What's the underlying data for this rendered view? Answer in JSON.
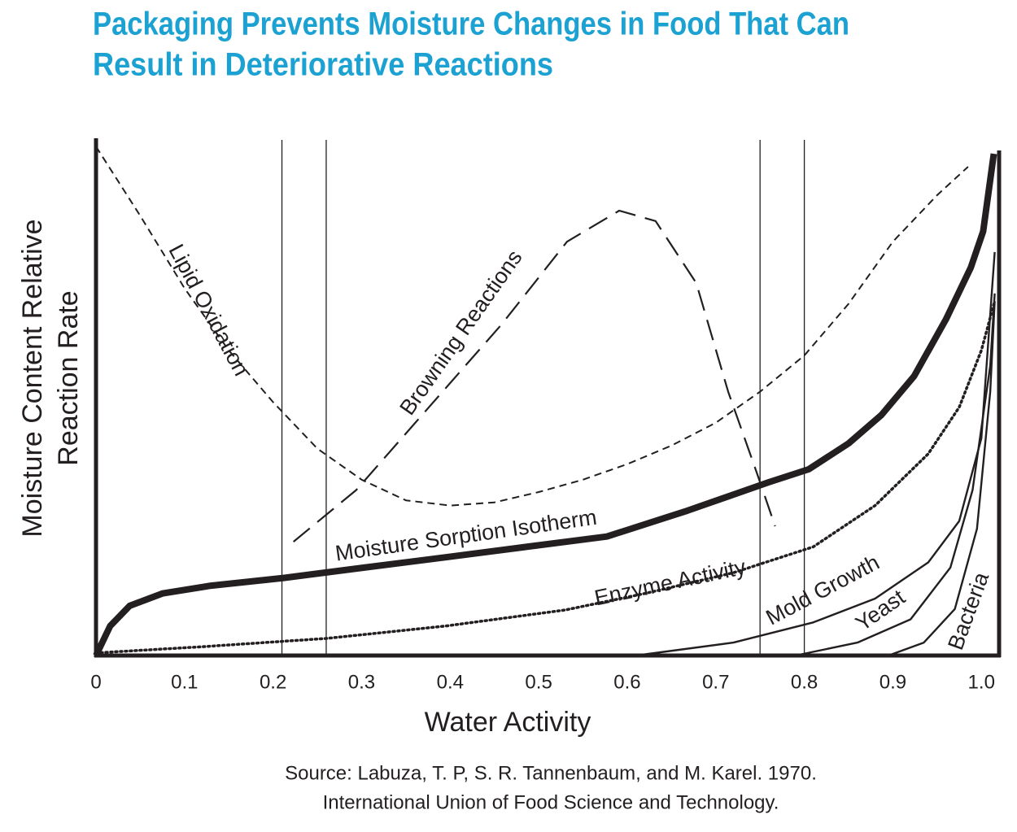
{
  "chart_data": {
    "type": "line",
    "title": [
      "Packaging Prevents Moisture Changes in Food That Can",
      "Result in Deteriorative Reactions"
    ],
    "x_label": "Water Activity",
    "y_label": [
      "Moisture Content Relative",
      "Reaction Rate"
    ],
    "source": [
      "Source: Labuza, T. P, S. R. Tannenbaum, and M. Karel. 1970.",
      "International Union of Food Science and Technology."
    ],
    "xlim": [
      0,
      1.02
    ],
    "xticks": [
      0,
      0.1,
      0.2,
      0.3,
      0.4,
      0.5,
      0.6,
      0.7,
      0.8,
      0.9,
      {
        "value": 1,
        "label": "1.0"
      }
    ],
    "ylim": [
      0,
      100
    ],
    "vlines": [
      0.21,
      0.26,
      0.75,
      0.8
    ],
    "series": [
      {
        "name": "Lipid Oxidation",
        "color": "#231f20",
        "line_style": "dashed",
        "x": [
          0,
          0.05,
          0.1,
          0.15,
          0.2,
          0.25,
          0.3,
          0.35,
          0.4,
          0.45,
          0.5,
          0.55,
          0.6,
          0.65,
          0.7,
          0.75,
          0.8,
          0.85,
          0.9,
          0.95,
          0.985
        ],
        "values": [
          98.4,
          85,
          71,
          59,
          49,
          40,
          34,
          30,
          29,
          29.6,
          31.6,
          34,
          37,
          40.6,
          45,
          51,
          58,
          68,
          80,
          89,
          94.5
        ]
      },
      {
        "name": "Browning Reactions",
        "color": "#231f20",
        "line_style": "long-dashed",
        "x": [
          0.223,
          0.294,
          0.376,
          0.458,
          0.532,
          0.591,
          0.632,
          0.678,
          0.714,
          0.746,
          0.767
        ],
        "values": [
          22,
          32,
          48,
          64,
          80,
          86,
          84,
          72,
          51,
          35.5,
          25
        ]
      },
      {
        "name": "Moisture Sorption Isotherm",
        "color": "#231f20",
        "line_style": "bold",
        "x": [
          0,
          0.016,
          0.038,
          0.075,
          0.13,
          0.212,
          0.303,
          0.395,
          0.486,
          0.577,
          0.668,
          0.76,
          0.805,
          0.85,
          0.887,
          0.924,
          0.96,
          0.988,
          1.002,
          1.014
        ],
        "values": [
          0,
          5.7,
          9.6,
          12,
          13.5,
          15,
          17,
          19,
          21,
          23,
          28,
          33.5,
          36,
          41,
          46.5,
          54,
          65,
          75,
          82,
          97
        ]
      },
      {
        "name": "Enzyme Activity",
        "color": "#231f20",
        "line_style": "dotted",
        "x": [
          0,
          0.12,
          0.26,
          0.395,
          0.53,
          0.62,
          0.72,
          0.81,
          0.88,
          0.94,
          0.975,
          1.0,
          1.015
        ],
        "values": [
          0.5,
          1.7,
          3.3,
          5.7,
          8.8,
          12,
          16,
          21,
          29,
          39,
          48,
          59,
          68.5
        ]
      },
      {
        "name": "Mold Growth",
        "color": "#231f20",
        "line_style": "solid",
        "x": [
          0.61,
          0.72,
          0.81,
          0.88,
          0.94,
          0.975,
          1.0,
          1.015
        ],
        "values": [
          0,
          2.5,
          6.4,
          11,
          18,
          26,
          42,
          78
        ]
      },
      {
        "name": "Yeast",
        "color": "#231f20",
        "line_style": "solid",
        "x": [
          0.79,
          0.86,
          0.92,
          0.965,
          0.99,
          1.01,
          1.015
        ],
        "values": [
          0,
          2.5,
          7,
          17,
          32,
          56,
          70
        ]
      },
      {
        "name": "Bacteria",
        "color": "#231f20",
        "line_style": "solid",
        "x": [
          0.895,
          0.935,
          0.97,
          0.995,
          1.01,
          1.015
        ],
        "values": [
          0,
          2.5,
          9,
          24.5,
          51,
          68.5
        ]
      }
    ]
  }
}
